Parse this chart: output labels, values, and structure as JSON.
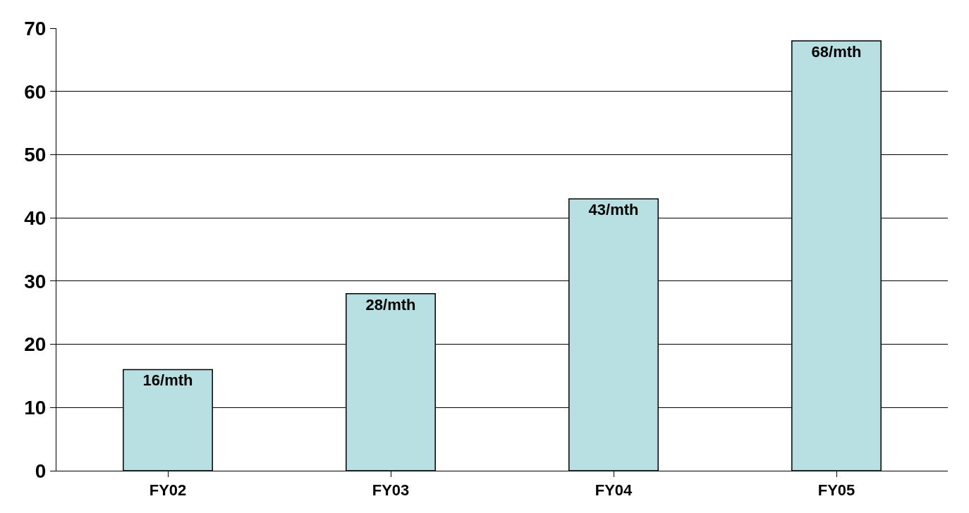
{
  "chart_data": {
    "type": "bar",
    "categories": [
      "FY02",
      "FY03",
      "FY04",
      "FY05"
    ],
    "values": [
      16,
      28,
      43,
      68
    ],
    "value_labels": [
      "16/mth",
      "28/mth",
      "43/mth",
      "68/mth"
    ],
    "color": "#b8dfe2",
    "ylim": [
      0,
      70
    ],
    "yticks": [
      0,
      10,
      20,
      30,
      40,
      50,
      60,
      70
    ],
    "grid": "y"
  }
}
